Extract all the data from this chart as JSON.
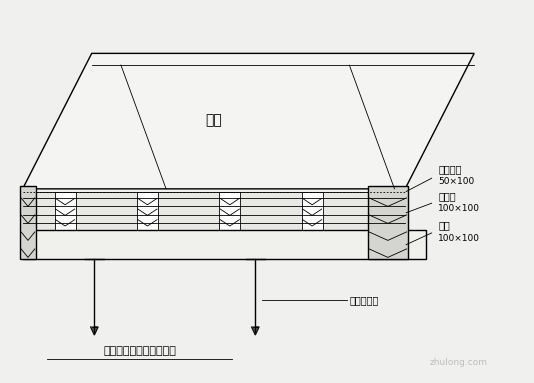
{
  "bg_color": "#f0f0ee",
  "line_color": "#000000",
  "title": "楼面早拆体系支模示意图",
  "label_zhujiao": "竹胶",
  "label_bucheng_line1": "补缝木条",
  "label_bucheng_line2": "50×100",
  "label_ciliang_line1": "次梁木",
  "label_ciliang_line2": "100×100",
  "label_zhuliang_line1": "主棁",
  "label_zhuliang_line2": "100×100",
  "label_ketiao": "可调早拆头",
  "watermark": "zhulong.com"
}
